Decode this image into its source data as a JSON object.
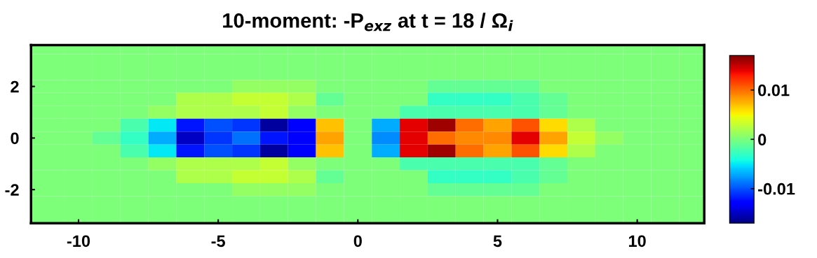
{
  "chart_data": {
    "type": "heatmap",
    "title": "10-moment: -P$_{exz}$ at t = 18 / Ω$_{i}$",
    "x": [
      -11,
      -10,
      -9,
      -8,
      -7,
      -6,
      -5,
      -4,
      -3,
      -2,
      -1,
      0,
      1,
      2,
      3,
      4,
      5,
      6,
      7,
      8,
      9,
      10,
      11,
      12
    ],
    "y": [
      3.5,
      3,
      2.5,
      2,
      1.5,
      1,
      0.5,
      0,
      -0.5,
      -1,
      -1.5,
      -2,
      -2.5,
      -3
    ],
    "cells": [
      [
        0,
        0,
        0,
        0,
        0,
        0,
        0,
        0,
        0,
        0,
        0,
        0,
        0,
        0,
        0,
        0,
        0,
        0,
        0,
        0,
        0,
        0,
        0,
        0
      ],
      [
        0,
        0,
        0,
        0,
        0,
        0,
        0,
        0,
        0,
        0,
        0,
        0,
        0,
        0,
        0,
        0,
        0,
        0,
        0,
        0,
        0,
        0,
        0,
        0
      ],
      [
        0,
        0,
        0,
        0,
        0,
        0,
        0,
        0,
        0,
        0,
        0,
        0,
        0,
        0,
        0,
        0,
        0,
        0,
        0,
        0,
        0,
        0,
        0,
        0
      ],
      [
        0,
        0,
        0,
        0,
        0,
        0,
        0,
        0.001,
        0.001,
        0.001,
        0,
        0,
        0,
        0,
        -0.001,
        -0.001,
        -0.001,
        -0.001,
        0,
        0,
        0,
        0,
        0,
        0
      ],
      [
        0,
        0,
        0,
        0,
        0,
        0.002,
        0.002,
        0.003,
        0.003,
        0.002,
        -0.001,
        0,
        0,
        0,
        -0.003,
        -0.003,
        -0.003,
        -0.002,
        -0.001,
        0,
        0,
        0,
        0,
        0
      ],
      [
        0,
        0,
        0,
        0,
        0.001,
        0.002,
        0.002,
        0.002,
        0.003,
        0.001,
        0,
        0,
        0,
        -0.002,
        -0.002,
        -0.002,
        -0.002,
        -0.002,
        -0.001,
        0,
        0,
        0,
        0,
        0
      ],
      [
        0,
        0,
        0,
        -0.002,
        -0.005,
        -0.012,
        -0.01,
        -0.011,
        -0.016,
        -0.013,
        0.007,
        0,
        -0.007,
        0.014,
        0.016,
        0.01,
        0.008,
        0.011,
        0.006,
        0.002,
        0,
        0,
        0,
        0
      ],
      [
        0,
        0,
        -0.001,
        -0.003,
        -0.007,
        -0.015,
        -0.011,
        -0.009,
        -0.012,
        -0.013,
        0.008,
        0,
        -0.008,
        0.014,
        0.01,
        0.009,
        0.009,
        0.014,
        0.008,
        0.003,
        0.001,
        0,
        0,
        0
      ],
      [
        0,
        0,
        0,
        -0.002,
        -0.005,
        -0.012,
        -0.01,
        -0.011,
        -0.016,
        -0.013,
        0.007,
        0,
        -0.007,
        0.014,
        0.016,
        0.01,
        0.008,
        0.011,
        0.006,
        0.002,
        0,
        0,
        0,
        0
      ],
      [
        0,
        0,
        0,
        0,
        0.001,
        0.002,
        0.002,
        0.002,
        0.003,
        0.001,
        0,
        0,
        0,
        -0.002,
        -0.002,
        -0.002,
        -0.002,
        -0.002,
        -0.001,
        0,
        0,
        0,
        0,
        0
      ],
      [
        0,
        0,
        0,
        0,
        0,
        0.002,
        0.002,
        0.003,
        0.003,
        0.002,
        -0.001,
        0,
        0,
        0,
        -0.003,
        -0.003,
        -0.003,
        -0.002,
        -0.001,
        0,
        0,
        0,
        0,
        0
      ],
      [
        0,
        0,
        0,
        0,
        0,
        0,
        0,
        0.001,
        0.001,
        0.001,
        0,
        0,
        0,
        0,
        -0.001,
        -0.001,
        -0.001,
        -0.001,
        0,
        0,
        0,
        0,
        0,
        0
      ],
      [
        0,
        0,
        0,
        0,
        0,
        0,
        0,
        0,
        0,
        0,
        0,
        0,
        0,
        0,
        0,
        0,
        0,
        0,
        0,
        0,
        0,
        0,
        0,
        0
      ],
      [
        0,
        0,
        0,
        0,
        0,
        0,
        0,
        0,
        0,
        0,
        0,
        0,
        0,
        0,
        0,
        0,
        0,
        0,
        0,
        0,
        0,
        0,
        0,
        0
      ]
    ],
    "xlim": [
      -11.7,
      12.4
    ],
    "ylim": [
      -3.3,
      3.6
    ],
    "xticks": [
      -10,
      -5,
      0,
      5,
      10
    ],
    "yticks": [
      -2,
      0,
      2
    ],
    "clim": [
      -0.017,
      0.017
    ],
    "cticks": [
      -0.01,
      0,
      0.01
    ]
  }
}
